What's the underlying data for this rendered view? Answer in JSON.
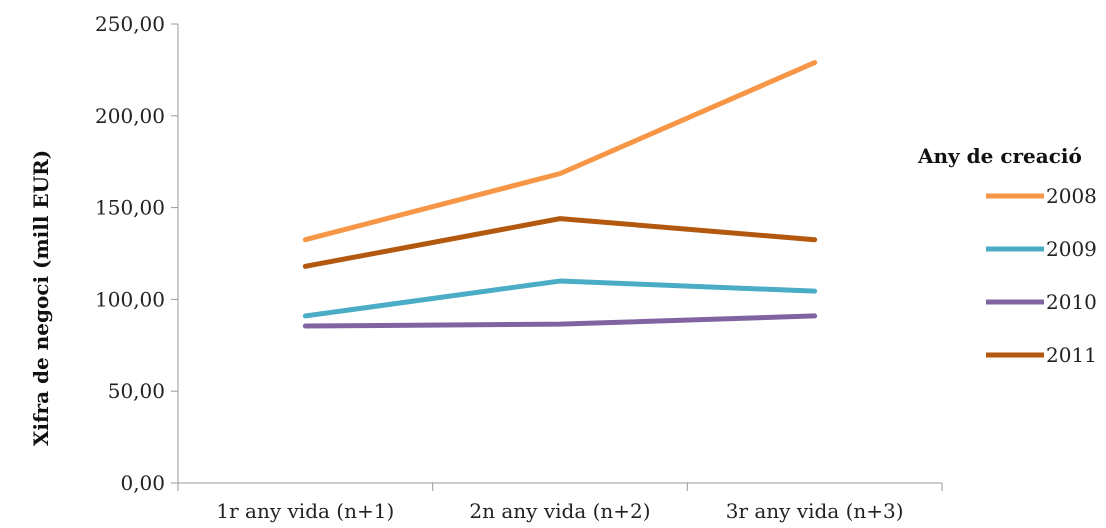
{
  "chart_data": {
    "type": "line",
    "title": "",
    "xlabel": "",
    "ylabel": "Xifra de negoci  (mill EUR)",
    "categories": [
      "1r any vida (n+1)",
      "2n any vida (n+2)",
      "3r any vida (n+3)"
    ],
    "y_ticks": [
      "0,00",
      "50,00",
      "100,00",
      "150,00",
      "200,00",
      "250,00"
    ],
    "ylim": [
      0,
      250
    ],
    "grid": false,
    "legend": {
      "title": "Any de creació",
      "placement": "right"
    },
    "series": [
      {
        "name": "2008",
        "color": "#F79646",
        "values": [
          132.5,
          168.5,
          229
        ]
      },
      {
        "name": "2009",
        "color": "#4BACC6",
        "values": [
          91,
          110,
          104.5
        ]
      },
      {
        "name": "2010",
        "color": "#8064A2",
        "values": [
          85.5,
          86.5,
          91
        ]
      },
      {
        "name": "2011",
        "color": "#B3590F",
        "values": [
          118,
          144,
          132.5
        ]
      }
    ]
  }
}
